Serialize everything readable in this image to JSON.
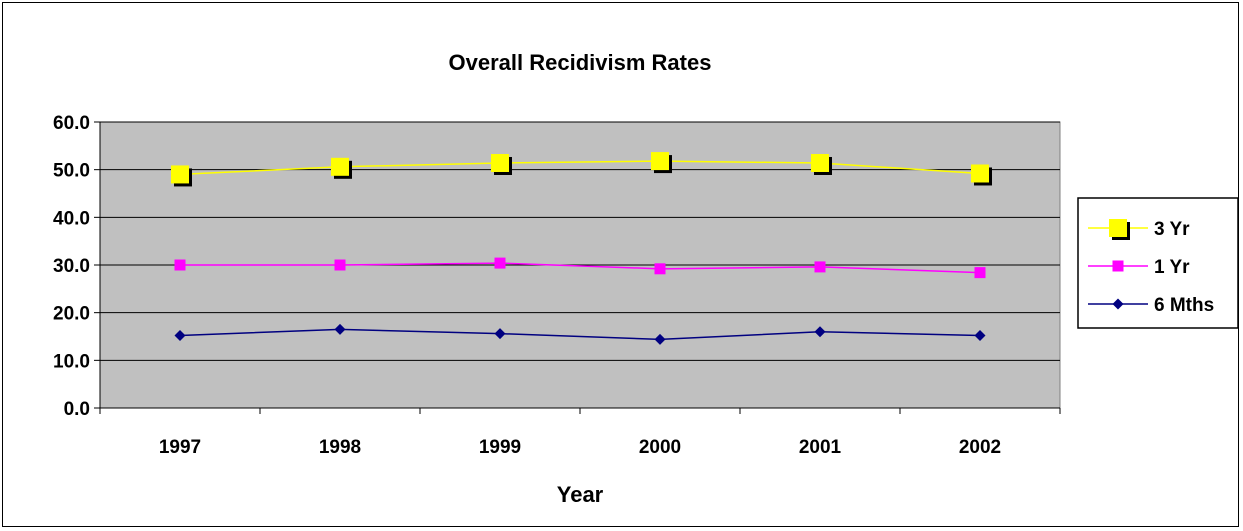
{
  "chart_data": {
    "type": "line",
    "title": "Overall Recidivism Rates",
    "xlabel": "Year",
    "ylabel": "",
    "categories": [
      "1997",
      "1998",
      "1999",
      "2000",
      "2001",
      "2002"
    ],
    "ylim": [
      0,
      60
    ],
    "yticks": [
      "0.0",
      "10.0",
      "20.0",
      "30.0",
      "40.0",
      "50.0",
      "60.0"
    ],
    "grid": true,
    "legend_position": "right",
    "series": [
      {
        "name": "3 Yr",
        "color": "#FFFF00",
        "marker": "square-large",
        "values": [
          49.0,
          50.6,
          51.4,
          51.8,
          51.4,
          49.2
        ]
      },
      {
        "name": "1 Yr",
        "color": "#FF00FF",
        "marker": "square",
        "values": [
          30.0,
          30.0,
          30.4,
          29.2,
          29.6,
          28.4
        ]
      },
      {
        "name": "6 Mths",
        "color": "#000080",
        "marker": "diamond",
        "values": [
          15.2,
          16.5,
          15.6,
          14.4,
          16.0,
          15.2
        ]
      }
    ]
  }
}
